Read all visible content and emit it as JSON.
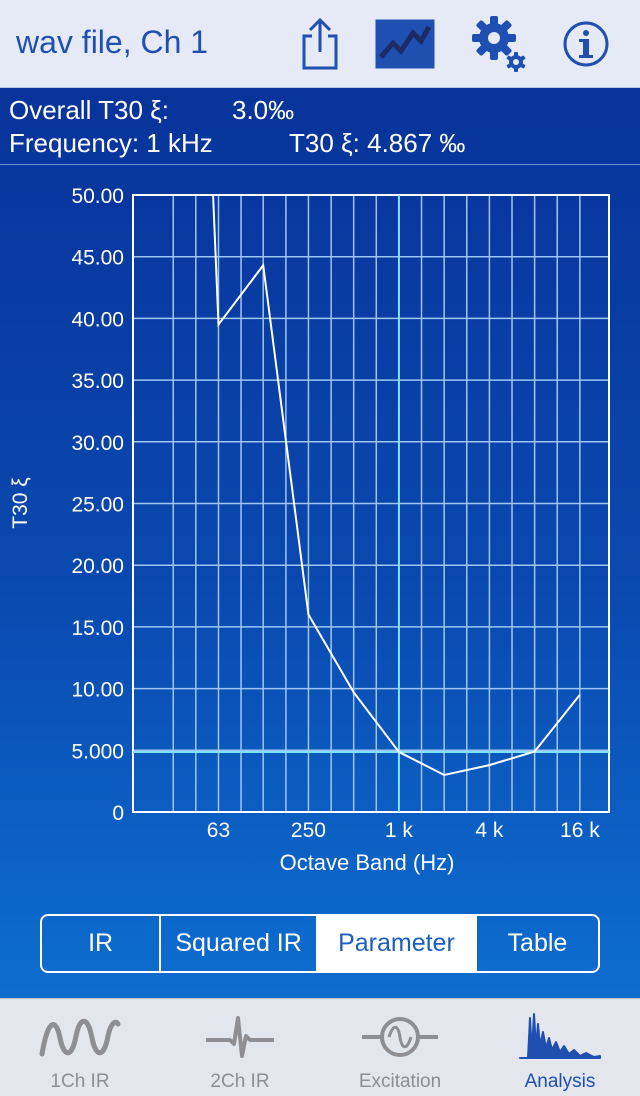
{
  "header": {
    "title": "wav file, Ch 1",
    "buttons": [
      {
        "name": "share-icon"
      },
      {
        "name": "graph-view-icon",
        "active": true
      },
      {
        "name": "settings-gear-icon"
      },
      {
        "name": "info-icon"
      }
    ]
  },
  "info": {
    "overall_label": "Overall T30 ξ:",
    "overall_value": "3.0‰",
    "frequency_text": "Frequency: 1 kHz",
    "t30_text": "T30 ξ: 4.867 ‰"
  },
  "chart_data": {
    "type": "line",
    "ylabel": "T30 ξ",
    "xlabel": "Octave Band (Hz)",
    "ylim": [
      0,
      50
    ],
    "y_ticks": [
      "50.00",
      "45.00",
      "40.00",
      "35.00",
      "30.00",
      "25.00",
      "20.00",
      "15.00",
      "10.00",
      "5.000",
      "0"
    ],
    "x_tick_labels": [
      "63",
      "250",
      "1 k",
      "4 k",
      "16 k"
    ],
    "x_label_hz": [
      63,
      250,
      1000,
      4000,
      16000
    ],
    "x_grid_hz": [
      31.5,
      44.5,
      63,
      89,
      125,
      177,
      250,
      354,
      500,
      707,
      1000,
      1414,
      2000,
      2828,
      4000,
      5657,
      8000,
      11314,
      16000
    ],
    "xlim_hz": [
      17,
      25000
    ],
    "grid": true,
    "series": [
      {
        "x": [
          63,
          125,
          250,
          500,
          1000,
          2000,
          4000,
          8000,
          16000
        ],
        "y": [
          39.5,
          44.3,
          16.0,
          9.7,
          4.867,
          3.0,
          3.8,
          4.9,
          9.5
        ],
        "color": "#ffffff",
        "top_clip_x": 58
      }
    ],
    "cursor": {
      "x": 1000,
      "y": 4.867,
      "color": "#7fe3f5"
    }
  },
  "segmented": {
    "items": [
      "IR",
      "Squared IR",
      "Parameter",
      "Table"
    ],
    "active_index": 2
  },
  "tabs": [
    {
      "label": "1Ch IR",
      "icon": "wave-icon"
    },
    {
      "label": "2Ch IR",
      "icon": "pulse-icon"
    },
    {
      "label": "Excitation",
      "icon": "sine-generator-icon"
    },
    {
      "label": "Analysis",
      "icon": "decay-analysis-icon",
      "active": true
    }
  ],
  "colors": {
    "accent": "#1f4fb0",
    "plot_grid": "#9fc6f0",
    "cursor": "#7fe3f5",
    "tab_inactive": "#8e8e93"
  }
}
